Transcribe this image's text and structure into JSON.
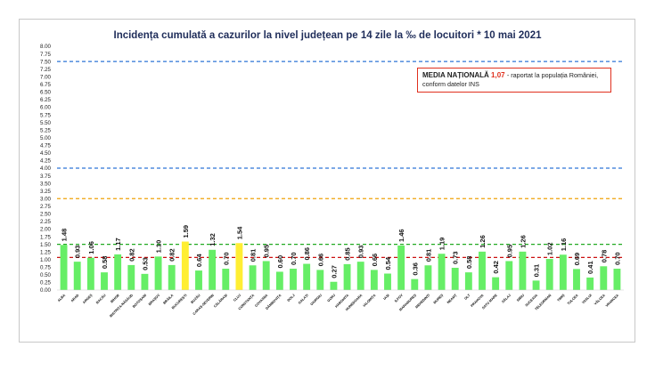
{
  "chart_data": {
    "type": "bar",
    "title": "Incidența cumulată a cazurilor la nivel județean pe 14 zile la ‰ de locuitori * 10 mai 2021",
    "xlabel": "",
    "ylabel": "",
    "ylim": [
      0,
      8
    ],
    "ytick_step": 0.25,
    "grid": false,
    "bar_color": "#66ee66",
    "highlight_color": "#ffee33",
    "categories": [
      "ALBA",
      "ARAD",
      "ARGEȘ",
      "BACĂU",
      "BIHOR",
      "BISTRIȚA-NĂSĂUD",
      "BOTOȘANI",
      "BRAȘOV",
      "BRĂILA",
      "BUCUREȘTI",
      "BUZĂU",
      "CARAȘ-SEVERIN",
      "CĂLĂRAȘI",
      "CLUJ",
      "CONSTANȚA",
      "COVASNA",
      "DÂMBOVIȚA",
      "DOLJ",
      "GALAȚI",
      "GIURGIU",
      "GORJ",
      "HARGHITA",
      "HUNEDOARA",
      "IALOMIȚA",
      "IAȘI",
      "ILFOV",
      "MARAMUREȘ",
      "MEHEDINȚI",
      "MUREȘ",
      "NEAMȚ",
      "OLT",
      "PRAHOVA",
      "SATU MARE",
      "SĂLAJ",
      "SIBIU",
      "SUCEAVA",
      "TELEORMAN",
      "TIMIȘ",
      "TULCEA",
      "VASLUI",
      "VÂLCEA",
      "VRANCEA"
    ],
    "values": [
      1.48,
      0.93,
      1.06,
      0.58,
      1.17,
      0.82,
      0.53,
      1.1,
      0.82,
      1.59,
      0.64,
      1.32,
      0.7,
      1.54,
      0.81,
      0.95,
      0.6,
      0.7,
      0.86,
      0.66,
      0.27,
      0.85,
      0.93,
      0.66,
      0.54,
      1.46,
      0.36,
      0.81,
      1.19,
      0.73,
      0.58,
      1.26,
      0.42,
      0.95,
      1.26,
      0.31,
      1.02,
      1.16,
      0.69,
      0.41,
      0.78,
      0.7
    ],
    "value_labels": [
      "1.48",
      "0.93",
      "1.06",
      "0.58",
      "1.17",
      "0.82",
      "0.53",
      "1.10",
      "0.82",
      "1.59",
      "0.64",
      "1.32",
      "0.70",
      "1.54",
      "0.81",
      "0.95",
      "0.60",
      "0.70",
      "0.86",
      "0.66",
      "0.27",
      "0.85",
      "0.93",
      "0.66",
      "0.54",
      "1.46",
      "0.36",
      "0.81",
      "1.19",
      "0.73",
      "0.58",
      "1.26",
      "0.42",
      "0.95",
      "1.26",
      "0.31",
      "1.02",
      "1.16",
      "0.69",
      "0.41",
      "0.78",
      "0.70"
    ],
    "highlighted": [
      "BUCUREȘTI",
      "CLUJ"
    ],
    "reference_lines": [
      {
        "value": 7.5,
        "color": "#2e75d6"
      },
      {
        "value": 4.0,
        "color": "#2e75d6"
      },
      {
        "value": 3.0,
        "color": "#f0a30a"
      },
      {
        "value": 1.5,
        "color": "#22aa22"
      },
      {
        "value": 1.07,
        "color": "#cc1111"
      }
    ]
  },
  "legend": {
    "label": "MEDIA NAȚIONALĂ",
    "value": "1,07",
    "text_line1": "- raportat la populația României,",
    "text_line2": "conform datelor INS"
  }
}
